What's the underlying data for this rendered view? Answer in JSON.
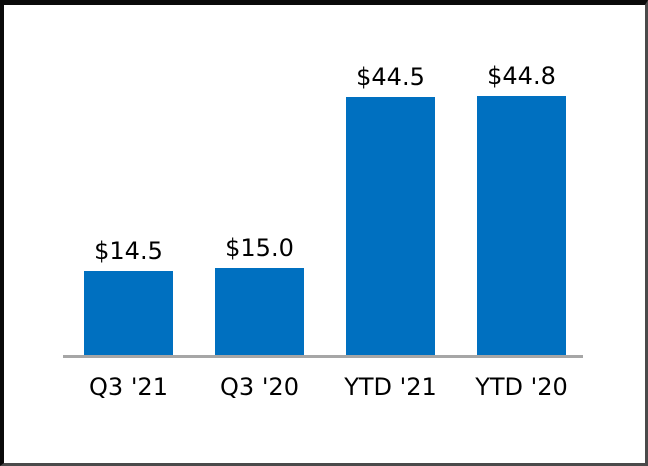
{
  "frame": {
    "background": "#ffffff",
    "border_color": "#0a0a0a"
  },
  "chart_data": {
    "type": "bar",
    "categories": [
      "Q3 '21",
      "Q3 '20",
      "YTD '21",
      "YTD '20"
    ],
    "values": [
      14.5,
      15.0,
      44.5,
      44.8
    ],
    "value_labels": [
      "$14.5",
      "$15.0",
      "$44.5",
      "$44.8"
    ],
    "title": "",
    "xlabel": "",
    "ylabel": "",
    "ylim": [
      0,
      50
    ],
    "grid": false,
    "legend": "none",
    "bar_color": "#0070c0",
    "axis_line_color": "#a6a6a6",
    "text_color": "#000000"
  }
}
